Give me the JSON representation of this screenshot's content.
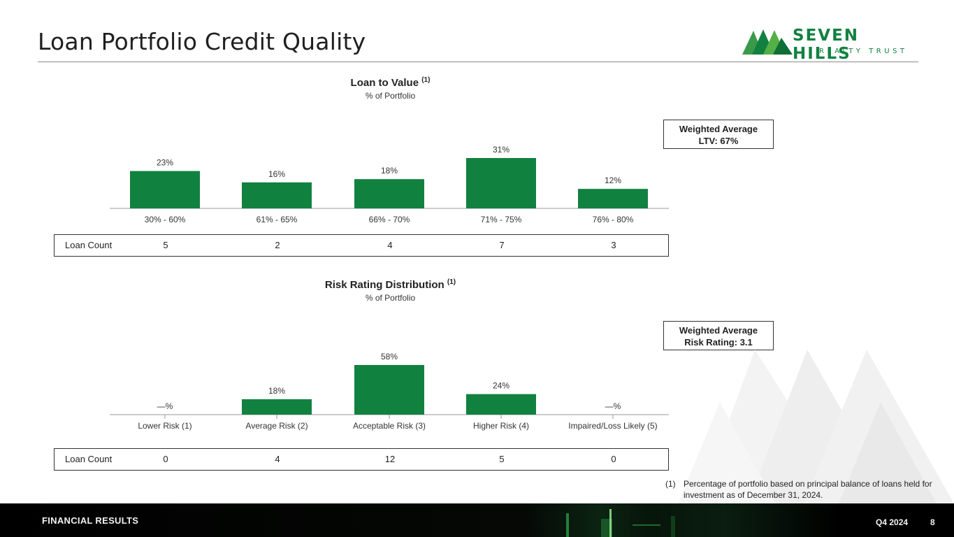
{
  "page_title": "Loan Portfolio Credit Quality",
  "logo": {
    "main": "SEVEN HILLS",
    "sub": "REALTY TRUST",
    "mark": "mountains-icon"
  },
  "colors": {
    "bar": "#118140",
    "axis": "#9a9a9a"
  },
  "ltv": {
    "title": "Loan to Value",
    "footnote_ref": "(1)",
    "subtitle": "% of Portfolio",
    "weighted_line1": "Weighted Average",
    "weighted_line2": "LTV: 67%",
    "count_label": "Loan Count",
    "counts": [
      "5",
      "2",
      "4",
      "7",
      "3"
    ]
  },
  "risk": {
    "title": "Risk Rating Distribution",
    "footnote_ref": "(1)",
    "subtitle": "% of Portfolio",
    "weighted_line1": "Weighted Average",
    "weighted_line2": "Risk Rating: 3.1",
    "count_label": "Loan Count",
    "counts": [
      "0",
      "4",
      "12",
      "5",
      "0"
    ]
  },
  "chart_data": [
    {
      "type": "bar",
      "title": "Loan to Value",
      "categories": [
        "30% - 60%",
        "61% - 65%",
        "66% - 70%",
        "71% - 75%",
        "76% - 80%"
      ],
      "values": [
        23,
        16,
        18,
        31,
        12
      ],
      "value_labels": [
        "23%",
        "16%",
        "18%",
        "31%",
        "12%"
      ],
      "ylim": [
        0,
        31
      ],
      "grid": false
    },
    {
      "type": "bar",
      "title": "Risk Rating Distribution",
      "categories": [
        "Lower Risk (1)",
        "Average Risk (2)",
        "Acceptable Risk (3)",
        "Higher Risk (4)",
        "Impaired/Loss Likely (5)"
      ],
      "values": [
        0,
        18,
        58,
        24,
        0
      ],
      "value_labels": [
        "—%",
        "18%",
        "58%",
        "24%",
        "—%"
      ],
      "ylim": [
        0,
        58
      ],
      "grid": false
    }
  ],
  "footnote": {
    "num": "(1)",
    "text": "Percentage of portfolio based on principal balance of loans held for investment as of December 31, 2024."
  },
  "footer": {
    "section": "FINANCIAL RESULTS",
    "period": "Q4 2024",
    "page": "8"
  }
}
